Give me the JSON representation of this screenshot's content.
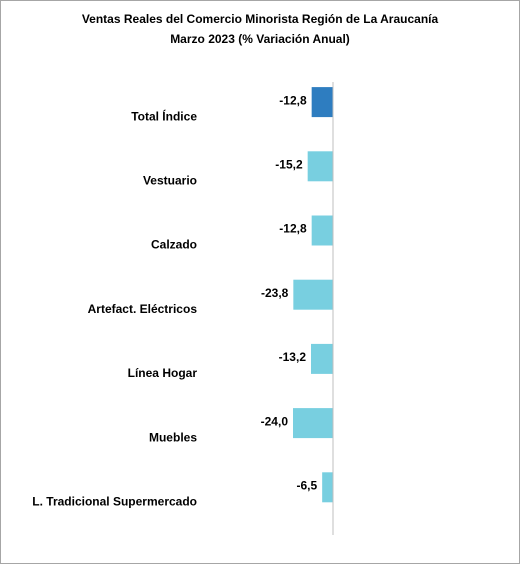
{
  "chart_data": {
    "type": "bar",
    "orientation": "horizontal",
    "title": "Ventas Reales del Comercio Minorista  Región de La Araucanía",
    "subtitle": "Marzo 2023 (% Variación Anual)",
    "categories": [
      "Total Índice",
      "Vestuario",
      "Calzado",
      "Artefact. Eléctricos",
      "Línea Hogar",
      "Muebles",
      "L. Tradicional Supermercado"
    ],
    "values": [
      -12.8,
      -15.2,
      -12.8,
      -23.8,
      -13.2,
      -24.0,
      -6.5
    ],
    "value_labels": [
      "-12,8",
      "-15,2",
      "-12,8",
      "-23,8",
      "-13,2",
      "-24,0",
      "-6,5"
    ],
    "colors": [
      "#2e7dc0",
      "#78cfe0",
      "#78cfe0",
      "#78cfe0",
      "#78cfe0",
      "#78cfe0",
      "#78cfe0"
    ],
    "xlim": [
      -30,
      0
    ]
  }
}
